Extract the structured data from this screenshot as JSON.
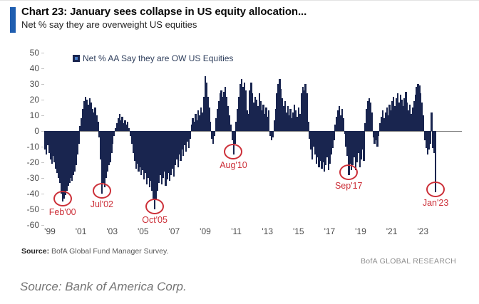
{
  "header": {
    "title": "Chart 23: January sees collapse in US equity allocation...",
    "subtitle": "Net % say they are overweight US equities"
  },
  "legend": {
    "label": "Net % AA Say they are OW US Equities"
  },
  "chart_data": {
    "type": "bar",
    "title": "Chart 23: January sees collapse in US equity allocation...",
    "subtitle": "Net % say they are overweight US equities",
    "series_name": "Net % AA Say they are OW US Equities",
    "frequency": "monthly",
    "x_start": "Jan 1999",
    "x_end": "Jan 2023",
    "ylim": [
      -60,
      50
    ],
    "grid": false,
    "legend_position": "top-left",
    "y_ticks": [
      50,
      40,
      30,
      20,
      10,
      0,
      -10,
      -20,
      -30,
      -40,
      -50,
      -60
    ],
    "x_ticks": [
      "'99",
      "'01",
      "'03",
      "'05",
      "'07",
      "'09",
      "'11",
      "'13",
      "'15",
      "'17",
      "'19",
      "'21",
      "'23"
    ],
    "values": [
      -12,
      -15,
      -9,
      -14,
      -18,
      -21,
      -16,
      -20,
      -24,
      -27,
      -30,
      -33,
      -40,
      -45,
      -43,
      -41,
      -38,
      -35,
      -33,
      -30,
      -32,
      -28,
      -26,
      -22,
      -15,
      -8,
      3,
      8,
      14,
      19,
      22,
      20,
      17,
      21,
      18,
      14,
      12,
      15,
      10,
      6,
      -4,
      -18,
      -40,
      -33,
      -36,
      -30,
      -26,
      -22,
      -20,
      -14,
      -8,
      -3,
      2,
      5,
      8,
      11,
      7,
      9,
      5,
      7,
      4,
      6,
      2,
      -3,
      -8,
      -14,
      -19,
      -24,
      -21,
      -26,
      -23,
      -28,
      -25,
      -31,
      -27,
      -34,
      -30,
      -36,
      -32,
      -38,
      -43,
      -50,
      -44,
      -38,
      -33,
      -28,
      -34,
      -30,
      -26,
      -35,
      -31,
      -27,
      -32,
      -28,
      -24,
      -29,
      -22,
      -18,
      -23,
      -15,
      -19,
      -12,
      -16,
      -9,
      -13,
      -7,
      -11,
      -5,
      4,
      8,
      6,
      11,
      7,
      13,
      10,
      15,
      12,
      22,
      35,
      31,
      22,
      15,
      6,
      -5,
      -8,
      -3,
      8,
      14,
      19,
      24,
      26,
      22,
      25,
      28,
      22,
      16,
      10,
      4,
      -6,
      -15,
      -8,
      6,
      14,
      22,
      30,
      33,
      28,
      31,
      26,
      13,
      11,
      26,
      31,
      24,
      18,
      22,
      20,
      16,
      24,
      19,
      13,
      17,
      11,
      15,
      9,
      13,
      -3,
      -6,
      -4,
      7,
      14,
      24,
      30,
      33,
      27,
      21,
      16,
      19,
      12,
      16,
      10,
      14,
      8,
      12,
      17,
      13,
      9,
      15,
      11,
      24,
      28,
      26,
      30,
      24,
      6,
      -5,
      -12,
      -18,
      -10,
      -15,
      -21,
      -17,
      -23,
      -19,
      -24,
      -20,
      -26,
      -22,
      -17,
      -25,
      -21,
      -15,
      -11,
      -6,
      4,
      9,
      13,
      16,
      10,
      14,
      8,
      -2,
      -10,
      -16,
      -28,
      -21,
      -25,
      -22,
      -17,
      -25,
      -20,
      -14,
      -23,
      -18,
      -12,
      -19,
      5,
      14,
      19,
      21,
      18,
      12,
      -4,
      -8,
      -6,
      -10,
      -3,
      5,
      9,
      13,
      8,
      12,
      15,
      10,
      17,
      13,
      19,
      22,
      16,
      21,
      24,
      18,
      23,
      20,
      16,
      21,
      25,
      18,
      13,
      17,
      11,
      15,
      19,
      23,
      28,
      30,
      29,
      24,
      18,
      10,
      -6,
      -11,
      -15,
      -12,
      -8,
      12,
      -11,
      -14,
      -39
    ],
    "annotations": [
      {
        "label": "Feb'00",
        "month_index": 13,
        "value": -45
      },
      {
        "label": "Jul'02",
        "month_index": 42,
        "value": -40
      },
      {
        "label": "Oct'05",
        "month_index": 81,
        "value": -50
      },
      {
        "label": "Aug'10",
        "month_index": 139,
        "value": -15
      },
      {
        "label": "Sep'17",
        "month_index": 224,
        "value": -28
      },
      {
        "label": "Jan'23",
        "month_index": 288,
        "value": -39
      }
    ]
  },
  "footer": {
    "source_label": "Source:",
    "source_text": "BofA Global Fund Manager Survey.",
    "brand": "BofA GLOBAL RESEARCH"
  },
  "caption": "Source: Bank of America Corp.",
  "colors": {
    "bar": "#19254f",
    "accent": "#1f5eb0",
    "annotation": "#cc2f38",
    "axis_line": "#7f7f7f"
  }
}
